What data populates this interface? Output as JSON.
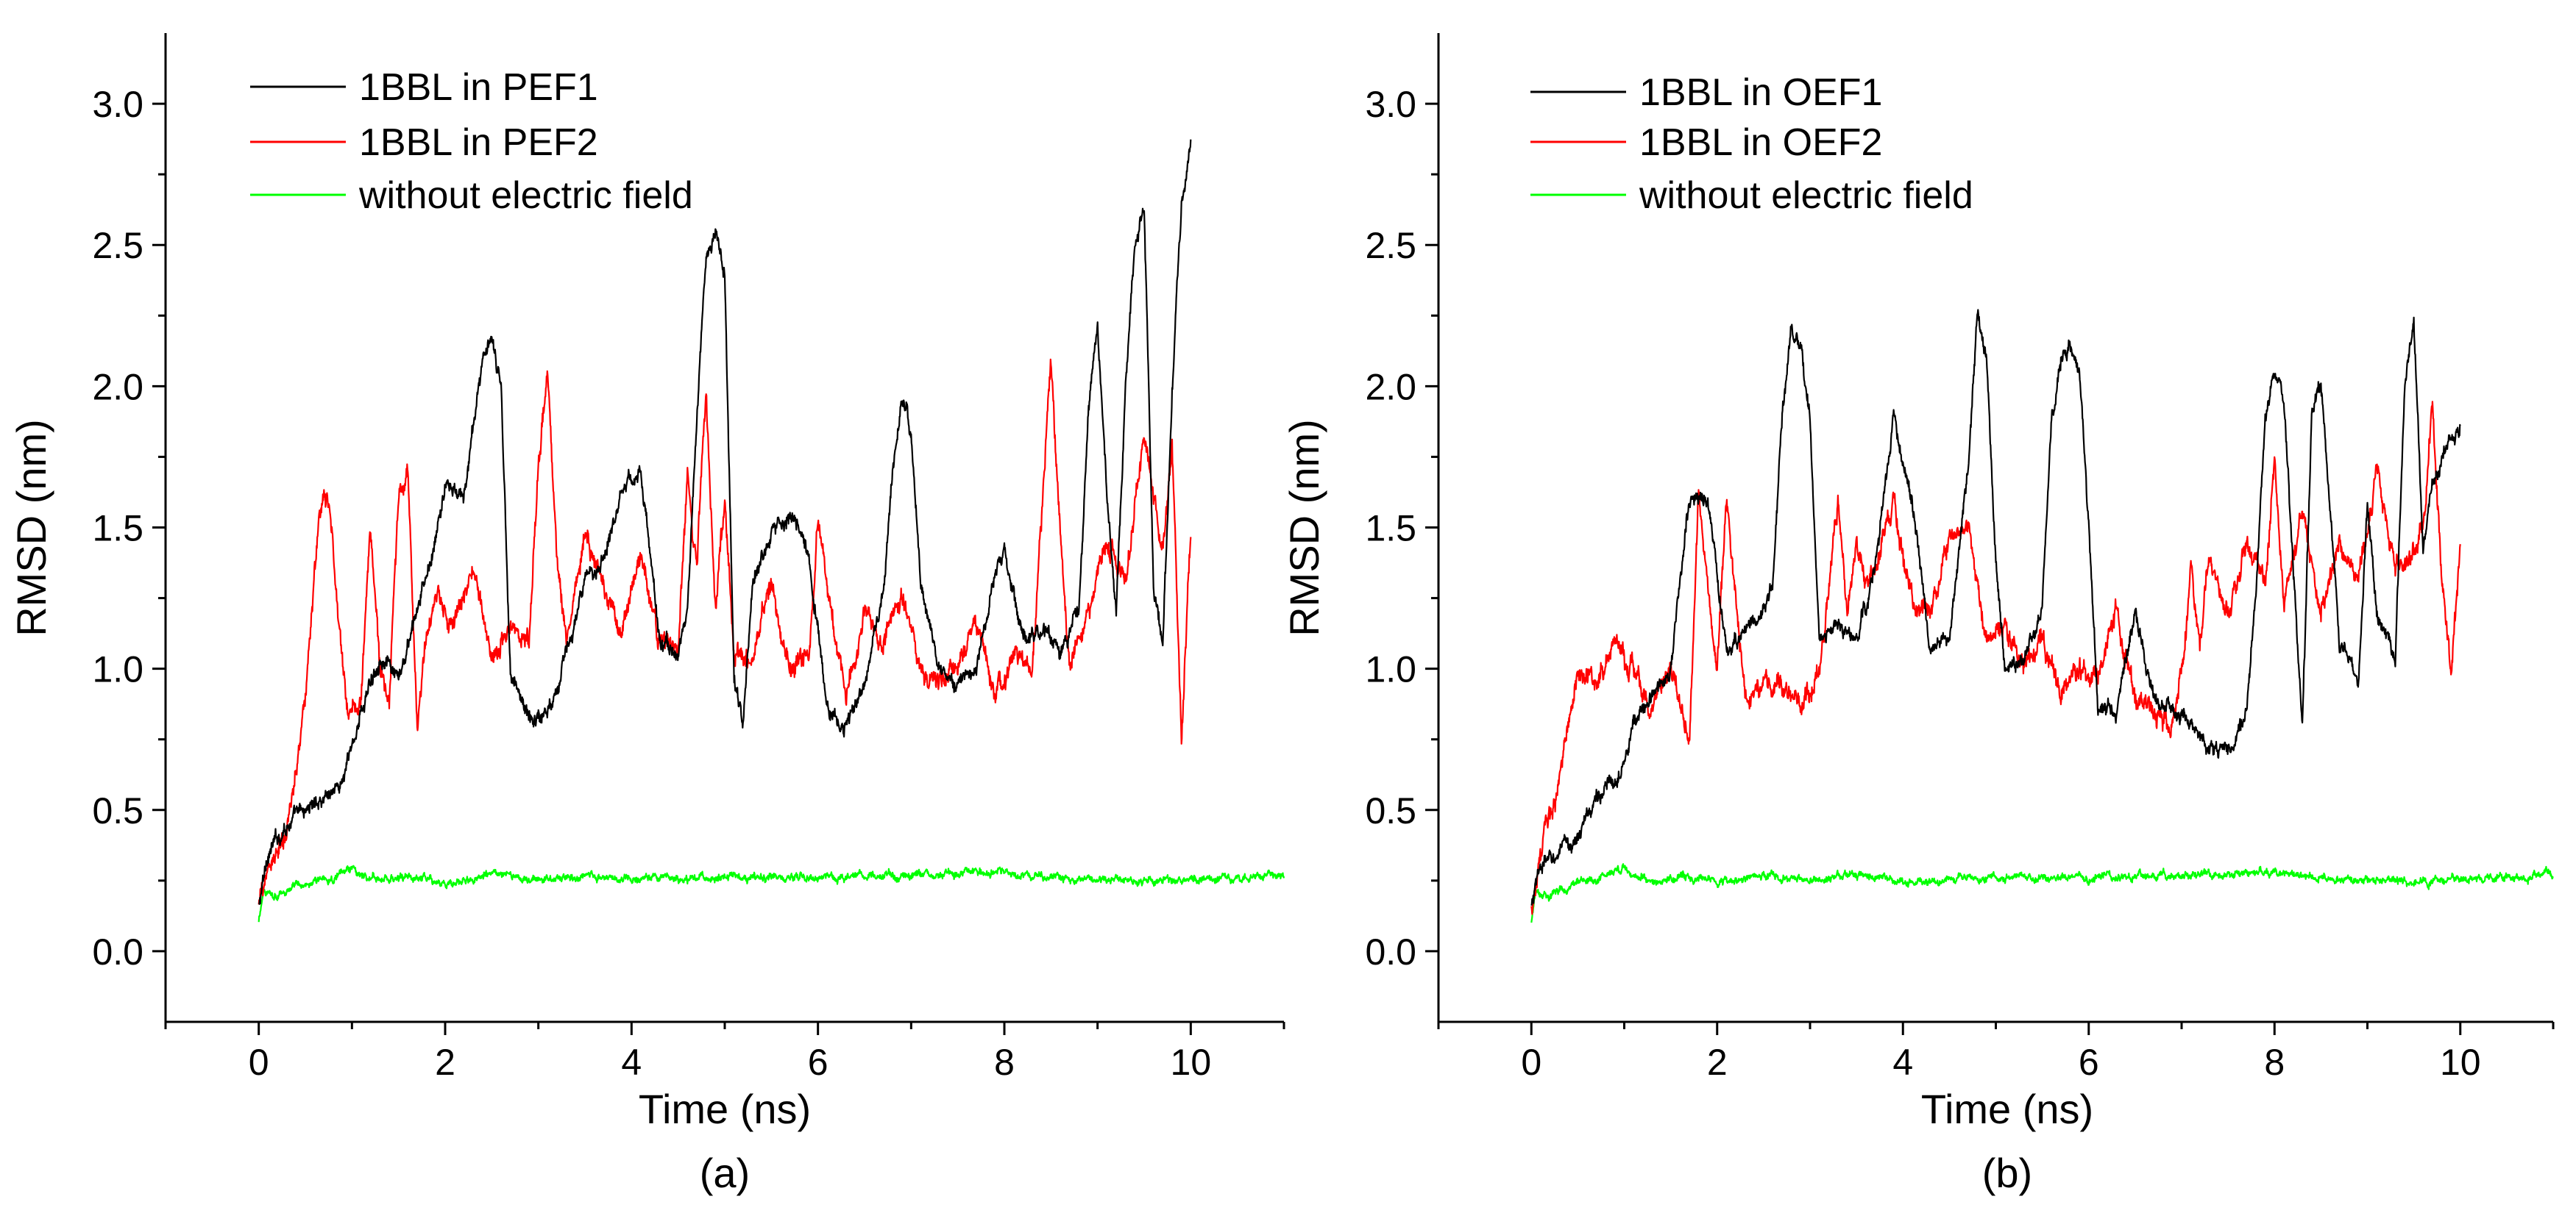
{
  "figure": {
    "caption_a": "(a)",
    "caption_b": "(b)"
  },
  "chart_data": [
    {
      "type": "line",
      "panel": "(a)",
      "xlabel": "Time (ns)",
      "ylabel": "RMSD (nm)",
      "xlim": [
        -1,
        11
      ],
      "ylim": [
        -0.25,
        3.25
      ],
      "xticks": [
        0,
        2,
        4,
        6,
        8,
        10
      ],
      "yticks": [
        0.0,
        0.5,
        1.0,
        1.5,
        2.0,
        2.5,
        3.0
      ],
      "xtick_labels": [
        "0",
        "2",
        "4",
        "6",
        "8",
        "10"
      ],
      "ytick_labels": [
        "0.0",
        "0.5",
        "1.0",
        "1.5",
        "2.0",
        "2.5",
        "3.0"
      ],
      "legend_position": "top-left",
      "series": [
        {
          "name": "1BBL in PEF1",
          "color": "#000000",
          "noise": 0.03,
          "x": [
            0,
            0.1,
            0.3,
            0.5,
            0.7,
            0.9,
            1.1,
            1.3,
            1.5,
            1.7,
            1.9,
            2.0,
            2.2,
            2.4,
            2.5,
            2.6,
            2.7,
            2.9,
            3.1,
            3.3,
            3.5,
            3.7,
            3.9,
            4.1,
            4.3,
            4.5,
            4.6,
            4.7,
            4.8,
            4.9,
            5.0,
            5.1,
            5.2,
            5.3,
            5.5,
            5.7,
            5.9,
            6.1,
            6.3,
            6.5,
            6.7,
            6.8,
            6.9,
            7.0,
            7.1,
            7.3,
            7.5,
            7.7,
            7.9,
            8.0,
            8.2,
            8.4,
            8.6,
            8.8,
            8.9,
            9.0,
            9.1,
            9.2,
            9.3,
            9.4,
            9.5,
            9.6,
            9.7,
            9.8,
            9.9,
            10.0
          ],
          "y": [
            0.15,
            0.35,
            0.45,
            0.5,
            0.55,
            0.6,
            0.85,
            1.05,
            0.95,
            1.2,
            1.45,
            1.65,
            1.6,
            2.1,
            2.15,
            2.0,
            1.0,
            0.82,
            0.85,
            1.05,
            1.3,
            1.4,
            1.65,
            1.7,
            1.1,
            1.05,
            1.2,
            1.9,
            2.45,
            2.55,
            2.4,
            0.95,
            0.8,
            1.3,
            1.5,
            1.55,
            1.4,
            0.85,
            0.8,
            0.95,
            1.25,
            1.7,
            1.95,
            1.85,
            1.3,
            1.0,
            0.95,
            1.0,
            1.35,
            1.4,
            1.1,
            1.15,
            1.05,
            1.2,
            1.9,
            2.25,
            1.6,
            1.2,
            2.0,
            2.5,
            2.65,
            1.3,
            1.1,
            2.0,
            2.65,
            2.85
          ]
        },
        {
          "name": "1BBL in PEF2",
          "color": "#ff0000",
          "noise": 0.04,
          "x": [
            0,
            0.1,
            0.3,
            0.5,
            0.65,
            0.75,
            0.85,
            0.95,
            1.1,
            1.2,
            1.3,
            1.4,
            1.5,
            1.6,
            1.7,
            1.8,
            1.9,
            2.1,
            2.3,
            2.5,
            2.7,
            2.9,
            3.0,
            3.1,
            3.2,
            3.3,
            3.5,
            3.7,
            3.9,
            4.1,
            4.3,
            4.5,
            4.6,
            4.7,
            4.8,
            4.9,
            5.0,
            5.1,
            5.3,
            5.5,
            5.7,
            5.9,
            6.0,
            6.1,
            6.3,
            6.5,
            6.7,
            6.9,
            7.1,
            7.3,
            7.5,
            7.7,
            7.9,
            8.1,
            8.3,
            8.5,
            8.6,
            8.7,
            8.9,
            9.1,
            9.3,
            9.5,
            9.7,
            9.8,
            9.9,
            10.0
          ],
          "y": [
            0.15,
            0.3,
            0.4,
            0.9,
            1.55,
            1.6,
            1.2,
            0.85,
            0.9,
            1.5,
            1.0,
            0.9,
            1.6,
            1.7,
            0.8,
            1.1,
            1.25,
            1.15,
            1.35,
            1.05,
            1.15,
            1.1,
            1.7,
            2.05,
            1.4,
            1.1,
            1.5,
            1.3,
            1.15,
            1.4,
            1.1,
            1.05,
            1.7,
            1.35,
            2.0,
            1.2,
            1.6,
            1.05,
            1.05,
            1.3,
            1.0,
            1.05,
            1.55,
            1.3,
            0.9,
            1.2,
            1.1,
            1.25,
            1.0,
            0.95,
            1.0,
            1.2,
            0.9,
            1.05,
            1.0,
            2.1,
            1.5,
            1.0,
            1.2,
            1.45,
            1.3,
            1.85,
            1.4,
            1.8,
            0.75,
            1.5
          ]
        },
        {
          "name": "without electric field",
          "color": "#00ff00",
          "noise": 0.015,
          "x": [
            0,
            0.05,
            0.2,
            0.5,
            0.8,
            1.0,
            1.1,
            1.3,
            1.6,
            2.0,
            2.5,
            3.0,
            3.5,
            4.0,
            5.0,
            6.0,
            7.0,
            7.8,
            8.5,
            9.0,
            10.0,
            11.0
          ],
          "y": [
            0.1,
            0.22,
            0.2,
            0.24,
            0.26,
            0.3,
            0.27,
            0.25,
            0.26,
            0.24,
            0.27,
            0.25,
            0.27,
            0.25,
            0.26,
            0.26,
            0.27,
            0.28,
            0.26,
            0.25,
            0.25,
            0.27
          ]
        }
      ]
    },
    {
      "type": "line",
      "panel": "(b)",
      "xlabel": "Time (ns)",
      "ylabel": "RMSD (nm)",
      "xlim": [
        -1,
        11
      ],
      "ylim": [
        -0.25,
        3.25
      ],
      "xticks": [
        0,
        2,
        4,
        6,
        8,
        10
      ],
      "yticks": [
        0.0,
        0.5,
        1.0,
        1.5,
        2.0,
        2.5,
        3.0
      ],
      "xtick_labels": [
        "0",
        "2",
        "4",
        "6",
        "8",
        "10"
      ],
      "ytick_labels": [
        "0.0",
        "0.5",
        "1.0",
        "1.5",
        "2.0",
        "2.5",
        "3.0"
      ],
      "legend_position": "top-left",
      "series": [
        {
          "name": "1BBL in OEF1",
          "color": "#000000",
          "noise": 0.03,
          "x": [
            0,
            0.1,
            0.3,
            0.5,
            0.7,
            0.9,
            1.1,
            1.3,
            1.5,
            1.7,
            1.9,
            2.1,
            2.3,
            2.5,
            2.6,
            2.7,
            2.8,
            2.9,
            3.0,
            3.1,
            3.3,
            3.5,
            3.7,
            3.9,
            4.0,
            4.1,
            4.3,
            4.5,
            4.7,
            4.8,
            4.9,
            5.0,
            5.1,
            5.3,
            5.5,
            5.6,
            5.7,
            5.8,
            5.9,
            6.0,
            6.1,
            6.3,
            6.5,
            6.7,
            6.9,
            7.1,
            7.3,
            7.5,
            7.7,
            7.8,
            7.9,
            8.0,
            8.1,
            8.3,
            8.4,
            8.5,
            8.7,
            8.9,
            9.0,
            9.1,
            9.3,
            9.4,
            9.5,
            9.6,
            9.7,
            9.8,
            10.0
          ],
          "y": [
            0.15,
            0.3,
            0.35,
            0.4,
            0.55,
            0.6,
            0.8,
            0.9,
            1.0,
            1.6,
            1.6,
            1.05,
            1.15,
            1.2,
            1.3,
            1.9,
            2.2,
            2.1,
            1.9,
            1.1,
            1.15,
            1.1,
            1.35,
            1.9,
            1.7,
            1.6,
            1.05,
            1.1,
            1.7,
            2.25,
            2.1,
            1.4,
            1.0,
            1.05,
            1.2,
            1.9,
            2.1,
            2.15,
            2.05,
            1.5,
            0.85,
            0.85,
            1.2,
            0.9,
            0.85,
            0.8,
            0.72,
            0.7,
            0.85,
            1.3,
            1.9,
            2.05,
            1.95,
            0.8,
            1.9,
            2.0,
            1.1,
            0.95,
            1.6,
            1.2,
            1.05,
            2.0,
            2.25,
            1.4,
            1.65,
            1.75,
            1.85
          ]
        },
        {
          "name": "1BBL in OEF2",
          "color": "#ff0000",
          "noise": 0.04,
          "x": [
            0,
            0.1,
            0.3,
            0.5,
            0.7,
            0.9,
            1.1,
            1.3,
            1.5,
            1.7,
            1.8,
            1.9,
            2.0,
            2.1,
            2.3,
            2.5,
            2.7,
            2.9,
            3.1,
            3.3,
            3.4,
            3.5,
            3.6,
            3.7,
            3.9,
            4.1,
            4.3,
            4.5,
            4.7,
            4.9,
            5.1,
            5.3,
            5.5,
            5.7,
            5.9,
            6.1,
            6.3,
            6.5,
            6.7,
            6.9,
            7.0,
            7.1,
            7.2,
            7.3,
            7.5,
            7.7,
            7.9,
            8.0,
            8.1,
            8.3,
            8.5,
            8.7,
            8.9,
            9.1,
            9.3,
            9.5,
            9.6,
            9.7,
            9.8,
            9.9,
            10.0
          ],
          "y": [
            0.15,
            0.35,
            0.6,
            1.0,
            0.95,
            1.1,
            1.0,
            0.85,
            1.0,
            0.75,
            1.6,
            1.3,
            1.0,
            1.6,
            0.9,
            0.95,
            0.95,
            0.85,
            1.0,
            1.6,
            1.2,
            1.5,
            1.3,
            1.35,
            1.6,
            1.25,
            1.2,
            1.45,
            1.5,
            1.1,
            1.15,
            1.0,
            1.1,
            0.9,
            1.0,
            0.95,
            1.2,
            0.9,
            0.85,
            0.8,
            1.0,
            1.35,
            1.1,
            1.4,
            1.2,
            1.45,
            1.3,
            1.75,
            1.2,
            1.55,
            1.2,
            1.45,
            1.3,
            1.7,
            1.35,
            1.4,
            1.5,
            1.95,
            1.3,
            1.0,
            1.45
          ]
        },
        {
          "name": "without electric field",
          "color": "#00ff00",
          "noise": 0.015,
          "x": [
            0,
            0.05,
            0.2,
            0.5,
            0.8,
            1.0,
            1.1,
            1.3,
            1.6,
            2.0,
            2.5,
            3.0,
            3.5,
            4.0,
            5.0,
            6.0,
            7.0,
            7.8,
            8.5,
            9.0,
            10.0,
            11.0
          ],
          "y": [
            0.1,
            0.22,
            0.2,
            0.24,
            0.26,
            0.3,
            0.27,
            0.25,
            0.26,
            0.24,
            0.27,
            0.25,
            0.27,
            0.25,
            0.26,
            0.26,
            0.27,
            0.28,
            0.26,
            0.25,
            0.25,
            0.27
          ]
        }
      ]
    }
  ]
}
